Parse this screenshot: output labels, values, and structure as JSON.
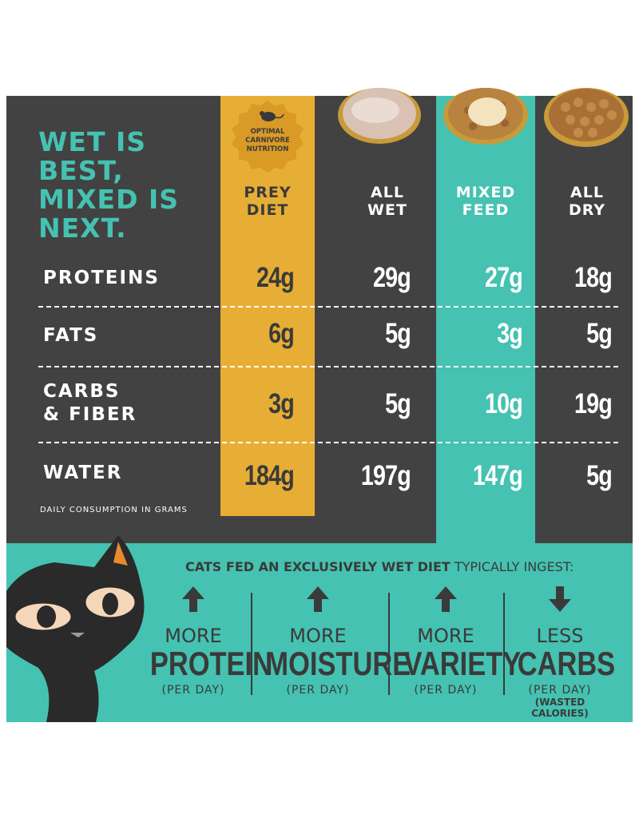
{
  "headline": "WET IS BEST, MIXED IS NEXT.",
  "badge": {
    "text": "OPTIMAL CARNIVORE NUTRITION",
    "icon": "mouse-icon"
  },
  "colors": {
    "dark": "#424242",
    "prey": "#E7AE35",
    "teal": "#45C2B1",
    "ink": "#3A3A3A",
    "white": "#FFFFFF"
  },
  "columns": [
    {
      "label": "PREY DIET"
    },
    {
      "label": "ALL WET"
    },
    {
      "label": "MIXED FEED"
    },
    {
      "label": "ALL DRY"
    }
  ],
  "rows": [
    {
      "label": "PROTEINS",
      "values": [
        "24g",
        "29g",
        "27g",
        "18g"
      ]
    },
    {
      "label": "FATS",
      "values": [
        "6g",
        "5g",
        "3g",
        "5g"
      ]
    },
    {
      "label": "CARBS\n& FIBER",
      "values": [
        "3g",
        "5g",
        "10g",
        "19g"
      ]
    },
    {
      "label": "WATER",
      "values": [
        "184g",
        "197g",
        "147g",
        "5g"
      ]
    }
  ],
  "footnote": "DAILY CONSUMPTION IN GRAMS",
  "chart_data": {
    "type": "table",
    "columns": [
      "PREY DIET",
      "ALL WET",
      "MIXED FEED",
      "ALL DRY"
    ],
    "rows": [
      "PROTEINS",
      "FATS",
      "CARBS & FIBER",
      "WATER"
    ],
    "values": [
      [
        24,
        29,
        27,
        18
      ],
      [
        6,
        5,
        3,
        5
      ],
      [
        3,
        5,
        10,
        19
      ],
      [
        184,
        197,
        147,
        5
      ]
    ],
    "unit": "g",
    "title": "WET IS BEST, MIXED IS NEXT."
  },
  "intro": {
    "bold": "CATS FED AN EXCLUSIVELY WET DIET",
    "rest": " TYPICALLY INGEST:"
  },
  "benefits": [
    {
      "direction": "up",
      "icon": "arrow-up-icon",
      "lead": "MORE",
      "big": "PROTEIN",
      "unit": "(PER DAY)",
      "note": ""
    },
    {
      "direction": "up",
      "icon": "arrow-up-icon",
      "lead": "MORE",
      "big": "MOISTURE",
      "unit": "(PER DAY)",
      "note": ""
    },
    {
      "direction": "up",
      "icon": "arrow-up-icon",
      "lead": "MORE",
      "big": "VARIETY",
      "unit": "(PER DAY)",
      "note": ""
    },
    {
      "direction": "down",
      "icon": "arrow-down-icon",
      "lead": "LESS",
      "big": "CARBS",
      "unit": "(PER DAY)",
      "note": "(WASTED CALORIES)"
    }
  ]
}
